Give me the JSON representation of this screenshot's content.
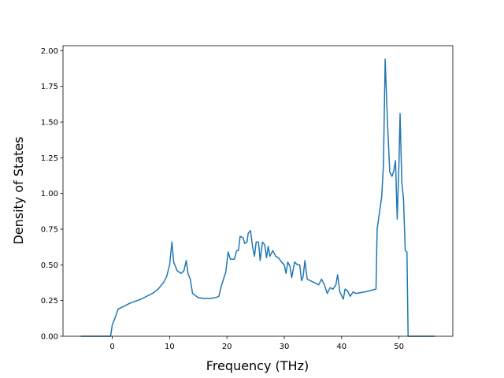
{
  "chart_data": {
    "type": "line",
    "xlabel": "Frequency (THz)",
    "ylabel": "Density of States",
    "x": [
      -5.5,
      -0.3,
      0,
      0.5,
      1,
      2,
      3,
      5,
      7,
      8,
      9,
      9.5,
      10,
      10.4,
      10.7,
      11.3,
      12,
      12.5,
      12.9,
      13.2,
      13.6,
      14,
      15,
      16,
      17,
      18,
      18.6,
      19,
      19.8,
      20.2,
      20.6,
      21.3,
      21.7,
      22,
      22.3,
      22.8,
      23.1,
      23.5,
      23.7,
      24.1,
      24.5,
      24.8,
      25.1,
      25.5,
      25.8,
      26.2,
      26.6,
      26.9,
      27.2,
      27.5,
      28,
      28.5,
      29,
      29.5,
      30,
      30.3,
      30.6,
      31,
      31.3,
      31.8,
      32.3,
      32.7,
      33,
      33.3,
      33.6,
      34,
      35,
      36,
      36.5,
      37,
      37.5,
      38,
      38.5,
      39,
      39.3,
      39.7,
      40.3,
      40.6,
      41,
      41.5,
      42,
      42.5,
      44,
      45,
      46,
      46.2,
      47,
      47.3,
      47.6,
      48,
      48.4,
      48.8,
      49.1,
      49.4,
      49.7,
      50,
      50.2,
      50.5,
      50.8,
      51.1,
      51.4,
      51.6,
      56.3
    ],
    "series": [
      {
        "name": "DOS",
        "color": "#1f77b4",
        "values": [
          0,
          0,
          0.08,
          0.13,
          0.19,
          0.21,
          0.23,
          0.26,
          0.3,
          0.33,
          0.38,
          0.42,
          0.5,
          0.66,
          0.52,
          0.46,
          0.44,
          0.46,
          0.53,
          0.44,
          0.4,
          0.3,
          0.27,
          0.265,
          0.265,
          0.27,
          0.28,
          0.35,
          0.45,
          0.59,
          0.54,
          0.54,
          0.6,
          0.6,
          0.7,
          0.69,
          0.65,
          0.66,
          0.72,
          0.74,
          0.62,
          0.56,
          0.66,
          0.66,
          0.53,
          0.66,
          0.64,
          0.55,
          0.63,
          0.56,
          0.6,
          0.56,
          0.55,
          0.52,
          0.5,
          0.44,
          0.52,
          0.49,
          0.41,
          0.52,
          0.5,
          0.5,
          0.39,
          0.42,
          0.53,
          0.4,
          0.38,
          0.36,
          0.4,
          0.36,
          0.3,
          0.34,
          0.33,
          0.36,
          0.43,
          0.31,
          0.26,
          0.33,
          0.32,
          0.28,
          0.31,
          0.3,
          0.31,
          0.32,
          0.33,
          0.75,
          0.98,
          1.2,
          1.94,
          1.5,
          1.15,
          1.12,
          1.16,
          1.23,
          0.82,
          1.2,
          1.56,
          1.08,
          0.96,
          0.6,
          0.59,
          0,
          0
        ]
      }
    ],
    "xlim": [
      -8.6,
      59.4
    ],
    "ylim": [
      0,
      2.035
    ],
    "xticks": [
      0,
      10,
      20,
      30,
      40,
      50
    ],
    "yticks": [
      {
        "value": 0,
        "label": "0.00"
      },
      {
        "value": 0.25,
        "label": "0.25"
      },
      {
        "value": 0.5,
        "label": "0.50"
      },
      {
        "value": 0.75,
        "label": "0.75"
      },
      {
        "value": 1.0,
        "label": "1.00"
      },
      {
        "value": 1.25,
        "label": "1.25"
      },
      {
        "value": 1.5,
        "label": "1.50"
      },
      {
        "value": 1.75,
        "label": "1.75"
      },
      {
        "value": 2.0,
        "label": "2.00"
      }
    ],
    "grid": false
  }
}
